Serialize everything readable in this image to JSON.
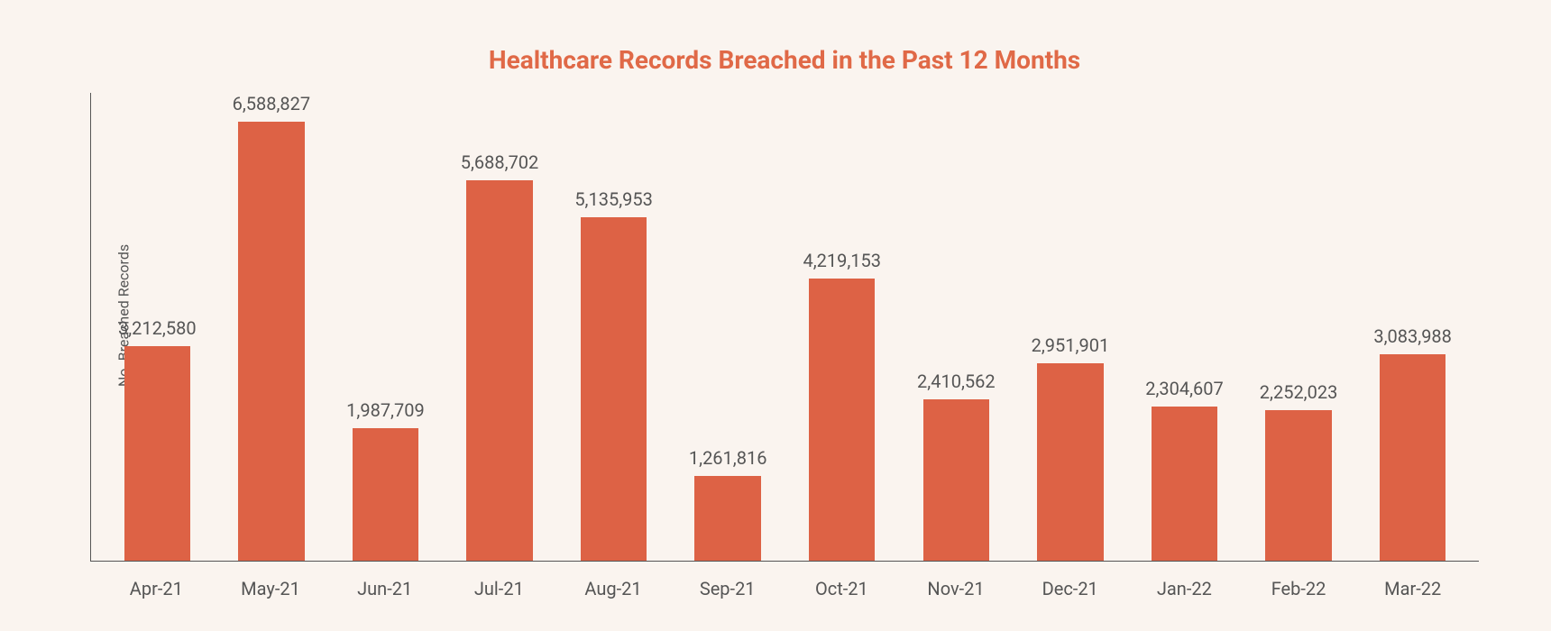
{
  "chart": {
    "type": "bar",
    "title": "Healthcare Records Breached in the Past 12 Months",
    "title_color": "#e06947",
    "title_fontsize": 28,
    "title_fontweight": 700,
    "ylabel": "No. Breached Records",
    "ylabel_fontsize": 16,
    "ylabel_color": "#555555",
    "background_color": "#faf4ef",
    "axis_color": "#555555",
    "ylim_max": 7000000,
    "bar_color": "#dd6245",
    "value_label_fontsize": 20,
    "value_label_color": "#555555",
    "xlabel_fontsize": 20,
    "xlabel_color": "#555555",
    "bar_width_ratio": 0.58,
    "categories": [
      "Apr-21",
      "May-21",
      "Jun-21",
      "Jul-21",
      "Aug-21",
      "Sep-21",
      "Oct-21",
      "Nov-21",
      "Dec-21",
      "Jan-22",
      "Feb-22",
      "Mar-22"
    ],
    "values": [
      3212580,
      6588827,
      1987709,
      5688702,
      5135953,
      1261816,
      4219153,
      2410562,
      2951901,
      2304607,
      2252023,
      3083988
    ],
    "value_labels": [
      "3,212,580",
      "6,588,827",
      "1,987,709",
      "5,688,702",
      "5,135,953",
      "1,261,816",
      "4,219,153",
      "2,410,562",
      "2,951,901",
      "2,304,607",
      "2,252,023",
      "3,083,988"
    ]
  }
}
